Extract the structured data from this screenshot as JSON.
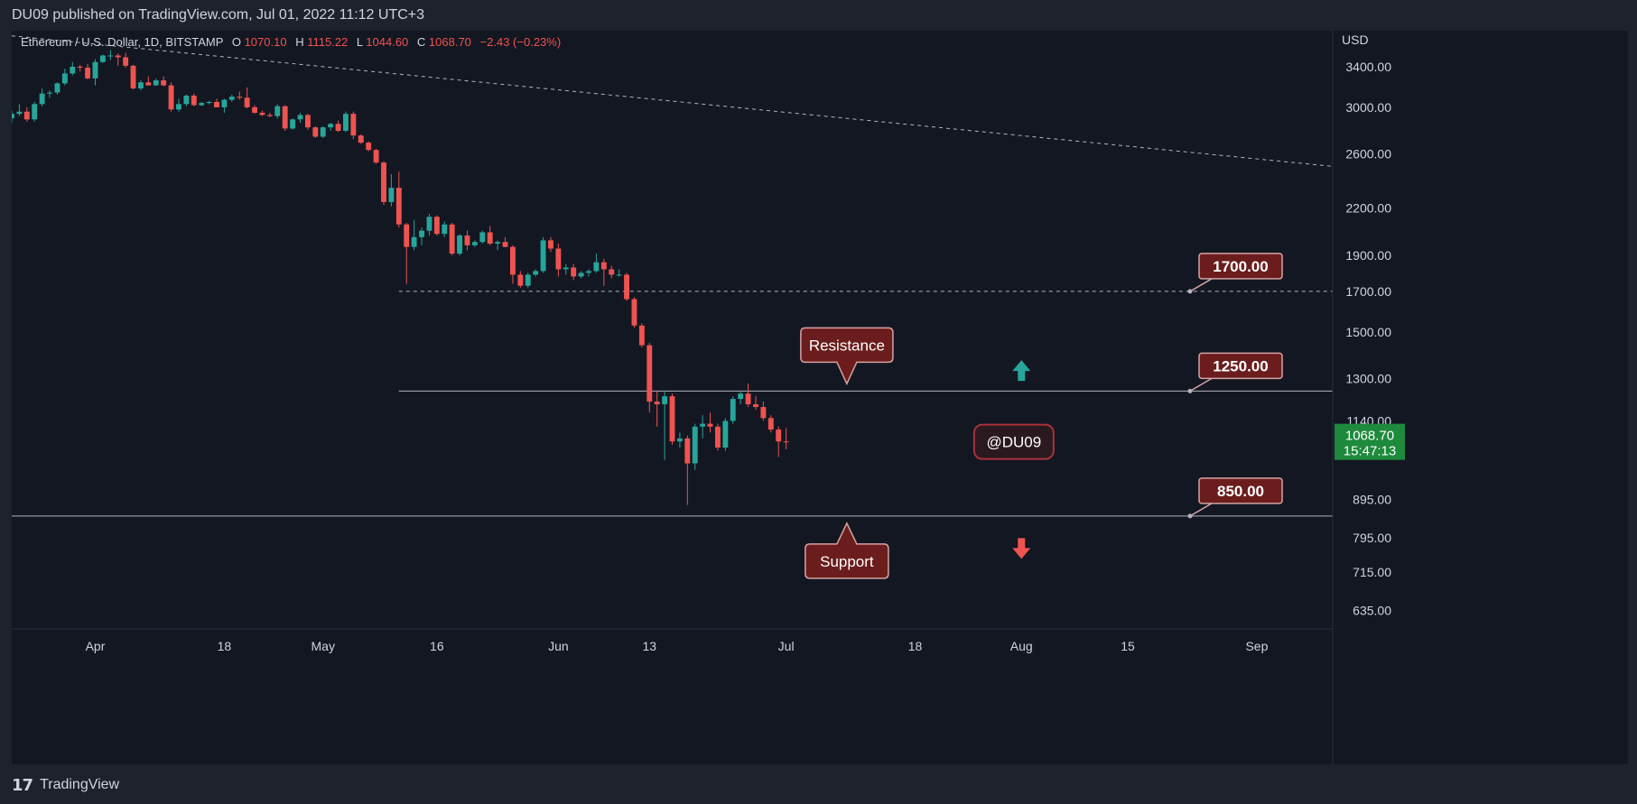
{
  "header": {
    "published": "DU09 published on TradingView.com, Jul 01, 2022 11:12 UTC+3"
  },
  "footer": {
    "brand": "TradingView",
    "logo": "tradingview-logo"
  },
  "legend": {
    "symbol": "Ethereum / U.S. Dollar, 1D, BITSTAMP",
    "o_label": "O",
    "o_value": "1070.10",
    "h_label": "H",
    "h_value": "1115.22",
    "l_label": "L",
    "l_value": "1044.60",
    "c_label": "C",
    "c_value": "1068.70",
    "change": "−2.43 (−0.23%)"
  },
  "colors": {
    "up": "#26a69a",
    "down": "#ef5350",
    "background": "#131722",
    "frame": "#1e222d",
    "label_fill": "#6b1d1d",
    "label_border": "#d6a3a3",
    "price_badge": "#1e8a3c"
  },
  "chart_data": {
    "type": "candlestick",
    "title": "Ethereum / U.S. Dollar, 1D, BITSTAMP",
    "currency_label": "USD",
    "y_scale": "log",
    "ylim": [
      600,
      3800
    ],
    "x_range": [
      "2022-03-21",
      "2022-09-11"
    ],
    "y_ticks": [
      "3400.00",
      "3000.00",
      "2600.00",
      "2200.00",
      "1900.00",
      "1700.00",
      "1500.00",
      "1300.00",
      "1140.00",
      "895.00",
      "795.00",
      "715.00",
      "635.00"
    ],
    "x_ticks": [
      {
        "date": "2022-04-01",
        "label": "Apr"
      },
      {
        "date": "2022-04-18",
        "label": "18"
      },
      {
        "date": "2022-05-01",
        "label": "May"
      },
      {
        "date": "2022-05-16",
        "label": "16"
      },
      {
        "date": "2022-06-01",
        "label": "Jun"
      },
      {
        "date": "2022-06-13",
        "label": "13"
      },
      {
        "date": "2022-07-01",
        "label": "Jul"
      },
      {
        "date": "2022-07-18",
        "label": "18"
      },
      {
        "date": "2022-08-01",
        "label": "Aug"
      },
      {
        "date": "2022-08-15",
        "label": "15"
      },
      {
        "date": "2022-09-01",
        "label": "Sep"
      }
    ],
    "candles": [
      [
        "2022-03-21",
        2900,
        2970,
        2860,
        2940
      ],
      [
        "2022-03-22",
        2940,
        3030,
        2920,
        2960
      ],
      [
        "2022-03-23",
        2960,
        3000,
        2870,
        2890
      ],
      [
        "2022-03-24",
        2890,
        3050,
        2870,
        3030
      ],
      [
        "2022-03-25",
        3030,
        3180,
        3010,
        3130
      ],
      [
        "2022-03-26",
        3130,
        3160,
        3090,
        3140
      ],
      [
        "2022-03-27",
        3140,
        3240,
        3120,
        3230
      ],
      [
        "2022-03-28",
        3230,
        3380,
        3210,
        3330
      ],
      [
        "2022-03-29",
        3330,
        3450,
        3310,
        3400
      ],
      [
        "2022-03-30",
        3400,
        3420,
        3350,
        3390
      ],
      [
        "2022-03-31",
        3390,
        3430,
        3270,
        3280
      ],
      [
        "2022-04-01",
        3280,
        3480,
        3210,
        3450
      ],
      [
        "2022-04-02",
        3450,
        3530,
        3440,
        3520
      ],
      [
        "2022-04-03",
        3520,
        3580,
        3470,
        3520
      ],
      [
        "2022-04-04",
        3520,
        3545,
        3410,
        3500
      ],
      [
        "2022-04-05",
        3500,
        3550,
        3390,
        3410
      ],
      [
        "2022-04-06",
        3410,
        3420,
        3170,
        3180
      ],
      [
        "2022-04-07",
        3180,
        3260,
        3160,
        3240
      ],
      [
        "2022-04-08",
        3240,
        3300,
        3210,
        3210
      ],
      [
        "2022-04-09",
        3210,
        3280,
        3205,
        3260
      ],
      [
        "2022-04-10",
        3260,
        3300,
        3200,
        3210
      ],
      [
        "2022-04-11",
        3210,
        3240,
        2960,
        2980
      ],
      [
        "2022-04-12",
        2980,
        3080,
        2960,
        3030
      ],
      [
        "2022-04-13",
        3030,
        3120,
        3010,
        3110
      ],
      [
        "2022-04-14",
        3110,
        3130,
        3010,
        3020
      ],
      [
        "2022-04-15",
        3020,
        3050,
        3010,
        3040
      ],
      [
        "2022-04-16",
        3040,
        3060,
        3030,
        3050
      ],
      [
        "2022-04-17",
        3050,
        3080,
        3000,
        3000
      ],
      [
        "2022-04-18",
        3000,
        3080,
        2950,
        3070
      ],
      [
        "2022-04-19",
        3070,
        3120,
        3050,
        3100
      ],
      [
        "2022-04-20",
        3100,
        3150,
        3070,
        3090
      ],
      [
        "2022-04-21",
        3090,
        3190,
        2990,
        3000
      ],
      [
        "2022-04-22",
        3000,
        3020,
        2940,
        2950
      ],
      [
        "2022-04-23",
        2950,
        2970,
        2920,
        2930
      ],
      [
        "2022-04-24",
        2930,
        2950,
        2910,
        2920
      ],
      [
        "2022-04-25",
        2920,
        3030,
        2900,
        3010
      ],
      [
        "2022-04-26",
        3010,
        3020,
        2790,
        2810
      ],
      [
        "2022-04-27",
        2810,
        2900,
        2800,
        2890
      ],
      [
        "2022-04-28",
        2890,
        2950,
        2860,
        2930
      ],
      [
        "2022-04-29",
        2930,
        2940,
        2800,
        2820
      ],
      [
        "2022-04-30",
        2820,
        2830,
        2730,
        2740
      ],
      [
        "2022-05-01",
        2740,
        2830,
        2730,
        2820
      ],
      [
        "2022-05-02",
        2820,
        2860,
        2790,
        2850
      ],
      [
        "2022-05-03",
        2850,
        2880,
        2780,
        2790
      ],
      [
        "2022-05-04",
        2790,
        2960,
        2780,
        2940
      ],
      [
        "2022-05-05",
        2940,
        2960,
        2720,
        2750
      ],
      [
        "2022-05-06",
        2750,
        2760,
        2680,
        2690
      ],
      [
        "2022-05-07",
        2690,
        2700,
        2620,
        2630
      ],
      [
        "2022-05-08",
        2630,
        2640,
        2520,
        2530
      ],
      [
        "2022-05-09",
        2530,
        2540,
        2220,
        2240
      ],
      [
        "2022-05-10",
        2240,
        2440,
        2210,
        2340
      ],
      [
        "2022-05-11",
        2340,
        2460,
        2070,
        2090
      ],
      [
        "2022-05-12",
        2090,
        2100,
        1740,
        1950
      ],
      [
        "2022-05-13",
        1950,
        2120,
        1930,
        2010
      ],
      [
        "2022-05-14",
        2010,
        2070,
        1960,
        2050
      ],
      [
        "2022-05-15",
        2050,
        2160,
        2020,
        2140
      ],
      [
        "2022-05-16",
        2140,
        2150,
        2020,
        2030
      ],
      [
        "2022-05-17",
        2030,
        2110,
        2010,
        2090
      ],
      [
        "2022-05-18",
        2090,
        2100,
        1900,
        1910
      ],
      [
        "2022-05-19",
        1910,
        2030,
        1900,
        2020
      ],
      [
        "2022-05-20",
        2020,
        2050,
        1930,
        1960
      ],
      [
        "2022-05-21",
        1960,
        1990,
        1950,
        1980
      ],
      [
        "2022-05-22",
        1980,
        2050,
        1970,
        2040
      ],
      [
        "2022-05-23",
        2040,
        2080,
        1960,
        1970
      ],
      [
        "2022-05-24",
        1970,
        1990,
        1930,
        1980
      ],
      [
        "2022-05-25",
        1980,
        2010,
        1950,
        1950
      ],
      [
        "2022-05-26",
        1950,
        1960,
        1740,
        1790
      ],
      [
        "2022-05-27",
        1790,
        1810,
        1720,
        1730
      ],
      [
        "2022-05-28",
        1730,
        1800,
        1720,
        1790
      ],
      [
        "2022-05-29",
        1790,
        1820,
        1780,
        1810
      ],
      [
        "2022-05-30",
        1810,
        2010,
        1800,
        1990
      ],
      [
        "2022-05-31",
        1990,
        2010,
        1920,
        1940
      ],
      [
        "2022-06-01",
        1940,
        1970,
        1780,
        1820
      ],
      [
        "2022-06-02",
        1820,
        1850,
        1790,
        1830
      ],
      [
        "2022-06-03",
        1830,
        1850,
        1760,
        1780
      ],
      [
        "2022-06-04",
        1780,
        1810,
        1770,
        1800
      ],
      [
        "2022-06-05",
        1800,
        1820,
        1780,
        1810
      ],
      [
        "2022-06-06",
        1810,
        1910,
        1800,
        1860
      ],
      [
        "2022-06-07",
        1860,
        1880,
        1730,
        1820
      ],
      [
        "2022-06-08",
        1820,
        1840,
        1770,
        1790
      ],
      [
        "2022-06-09",
        1790,
        1820,
        1780,
        1790
      ],
      [
        "2022-06-10",
        1790,
        1800,
        1650,
        1660
      ],
      [
        "2022-06-11",
        1660,
        1670,
        1520,
        1530
      ],
      [
        "2022-06-12",
        1530,
        1540,
        1430,
        1440
      ],
      [
        "2022-06-13",
        1440,
        1450,
        1170,
        1210
      ],
      [
        "2022-06-14",
        1210,
        1250,
        1120,
        1200
      ],
      [
        "2022-06-15",
        1200,
        1250,
        1010,
        1230
      ],
      [
        "2022-06-16",
        1230,
        1240,
        1060,
        1070
      ],
      [
        "2022-06-17",
        1070,
        1100,
        1050,
        1080
      ],
      [
        "2022-06-18",
        1080,
        1090,
        880,
        1000
      ],
      [
        "2022-06-19",
        1000,
        1130,
        980,
        1120
      ],
      [
        "2022-06-20",
        1120,
        1160,
        1080,
        1130
      ],
      [
        "2022-06-21",
        1130,
        1170,
        1100,
        1120
      ],
      [
        "2022-06-22",
        1120,
        1130,
        1040,
        1050
      ],
      [
        "2022-06-23",
        1050,
        1150,
        1040,
        1140
      ],
      [
        "2022-06-24",
        1140,
        1230,
        1130,
        1220
      ],
      [
        "2022-06-25",
        1220,
        1250,
        1200,
        1240
      ],
      [
        "2022-06-26",
        1240,
        1280,
        1190,
        1200
      ],
      [
        "2022-06-27",
        1200,
        1230,
        1180,
        1190
      ],
      [
        "2022-06-28",
        1190,
        1210,
        1140,
        1150
      ],
      [
        "2022-06-29",
        1150,
        1160,
        1100,
        1110
      ],
      [
        "2022-06-30",
        1110,
        1120,
        1020,
        1070
      ],
      [
        "2022-07-01",
        1070.1,
        1115.22,
        1044.6,
        1068.7
      ]
    ],
    "trendline": {
      "style": "dashed",
      "from": [
        "2022-03-21",
        3740
      ],
      "to": [
        "2022-09-11",
        2500
      ]
    },
    "levels": [
      {
        "price": 1700,
        "label": "1700.00",
        "style": "dashed",
        "from": "2022-05-11"
      },
      {
        "price": 1250,
        "label": "1250.00",
        "style": "solid",
        "from": "2022-05-11"
      },
      {
        "price": 850,
        "label": "850.00",
        "style": "solid",
        "from": "2022-03-21"
      }
    ],
    "annotations": [
      {
        "text": "Resistance",
        "date": "2022-07-09",
        "price": 1250,
        "pointer": "down"
      },
      {
        "text": "Support",
        "date": "2022-07-09",
        "price": 850,
        "pointer": "up"
      },
      {
        "text": "@DU09",
        "date": "2022-07-31",
        "price": 1068.7
      }
    ],
    "arrows": [
      {
        "direction": "up",
        "color": "#26a69a",
        "date": "2022-08-01",
        "price": 1330
      },
      {
        "direction": "down",
        "color": "#ef5350",
        "date": "2022-08-01",
        "price": 770
      }
    ],
    "last_price": {
      "value": "1068.70",
      "countdown": "15:47:13"
    }
  }
}
